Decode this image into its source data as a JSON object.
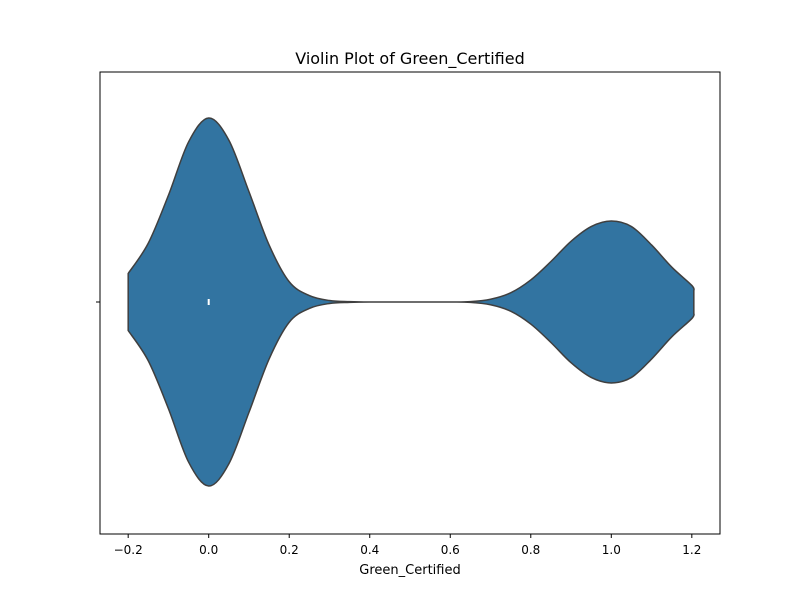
{
  "chart_data": {
    "type": "violin",
    "title": "Violin Plot of Green_Certified",
    "xlabel": "Green_Certified",
    "ylabel": "",
    "xlim": [
      -0.27,
      1.27
    ],
    "x_ticks": [
      -0.2,
      0.0,
      0.2,
      0.4,
      0.6,
      0.8,
      1.0,
      1.2
    ],
    "x_tick_labels": [
      "−0.2",
      "0.0",
      "0.2",
      "0.4",
      "0.6",
      "0.8",
      "1.0",
      "1.2"
    ],
    "density_x": [
      -0.2,
      -0.15,
      -0.1,
      -0.05,
      0.0,
      0.05,
      0.1,
      0.15,
      0.2,
      0.25,
      0.3,
      0.35,
      0.4,
      0.5,
      0.6,
      0.65,
      0.7,
      0.75,
      0.8,
      0.85,
      0.9,
      0.95,
      1.0,
      1.05,
      1.1,
      1.15,
      1.2,
      1.205
    ],
    "density_width": [
      0.155,
      0.32,
      0.58,
      0.87,
      1.0,
      0.88,
      0.6,
      0.31,
      0.11,
      0.035,
      0.008,
      0.002,
      0.0,
      0.0,
      0.0,
      0.002,
      0.015,
      0.05,
      0.12,
      0.22,
      0.33,
      0.41,
      0.44,
      0.41,
      0.31,
      0.19,
      0.09,
      0.06
    ],
    "median": 0.0,
    "quartiles": [
      0.0,
      0.0
    ],
    "fill_color": "#3274a1",
    "edge_color": "#3f3f3f",
    "median_color": "#ffffff",
    "grid": false
  }
}
